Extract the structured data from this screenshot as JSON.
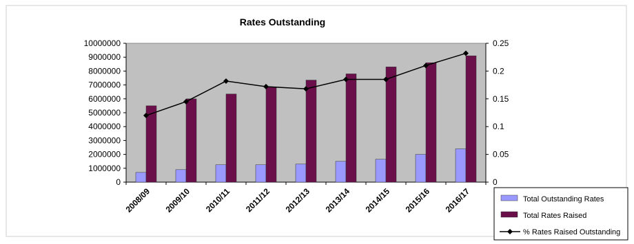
{
  "chart_data": {
    "type": "bar",
    "title": "Rates Outstanding",
    "categories": [
      "2008/09",
      "2009/10",
      "2010/11",
      "2011/12",
      "2012/13",
      "2013/14",
      "2014/15",
      "2015/16",
      "2016/17"
    ],
    "series": [
      {
        "name": "Total Outstanding Rates",
        "type": "bar",
        "axis": "left",
        "color": "#9999ff",
        "values": [
          700000,
          900000,
          1250000,
          1250000,
          1300000,
          1500000,
          1650000,
          2000000,
          2400000
        ]
      },
      {
        "name": "Total Rates Raised",
        "type": "bar",
        "axis": "left",
        "color": "#6a0f4a",
        "values": [
          5500000,
          6000000,
          6350000,
          6850000,
          7350000,
          7800000,
          8300000,
          8600000,
          9100000
        ]
      },
      {
        "name": "% Rates Raised Outstanding",
        "type": "line",
        "axis": "right",
        "color": "#000000",
        "values": [
          0.12,
          0.145,
          0.182,
          0.172,
          0.168,
          0.185,
          0.185,
          0.21,
          0.232
        ]
      }
    ],
    "y_left": {
      "min": 0,
      "max": 10000000,
      "ticks": [
        "0",
        "1000000",
        "2000000",
        "3000000",
        "4000000",
        "5000000",
        "6000000",
        "7000000",
        "8000000",
        "9000000",
        "10000000"
      ]
    },
    "y_right": {
      "min": 0,
      "max": 0.25,
      "ticks": [
        "0",
        "0.05",
        "0.1",
        "0.15",
        "0.2",
        "0.25"
      ]
    },
    "grid": false,
    "plot_background": "#c0c0c0",
    "legend_position": "bottom-right"
  }
}
